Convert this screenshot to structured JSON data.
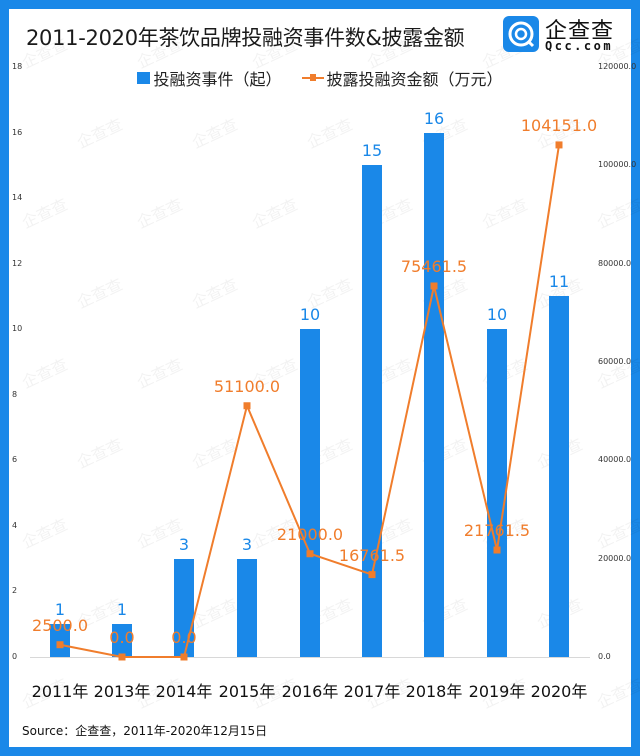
{
  "header": {
    "title": "2011-2020年茶饮品牌投融资事件数&披露金额",
    "logo_cn": "企查查",
    "logo_en": "Qcc.com"
  },
  "legend": {
    "bar_label": "投融资事件（起）",
    "line_label": "披露投融资金额（万元）"
  },
  "axes": {
    "left_ticks": [
      "18",
      "16",
      "14",
      "12",
      "10",
      "8",
      "6",
      "4",
      "2",
      "0"
    ],
    "right_ticks": [
      "120000.0",
      "100000.0",
      "80000.0",
      "60000.0",
      "40000.0",
      "20000.0",
      "0.0"
    ]
  },
  "x_labels": [
    "2011年",
    "2013年",
    "2014年",
    "2015年",
    "2016年",
    "2017年",
    "2018年",
    "2019年",
    "2020年"
  ],
  "bar_labels": [
    "1",
    "1",
    "3",
    "3",
    "10",
    "15",
    "16",
    "10",
    "11"
  ],
  "line_labels": [
    "2500.0",
    "0.0",
    "0.0",
    "51100.0",
    "21000.0",
    "16761.5",
    "75461.5",
    "21761.5",
    "104151.0"
  ],
  "footer": {
    "source": "Source：企查查，2011年-2020年12月15日"
  },
  "colors": {
    "bar": "#1a88e8",
    "line": "#f07d2c",
    "frame": "#1a88e8"
  },
  "chart_data": {
    "type": "bar",
    "title": "2011-2020年茶饮品牌投融资事件数&披露金额",
    "categories": [
      "2011年",
      "2013年",
      "2014年",
      "2015年",
      "2016年",
      "2017年",
      "2018年",
      "2019年",
      "2020年"
    ],
    "series": [
      {
        "name": "投融资事件（起）",
        "type": "bar",
        "axis": "left",
        "values": [
          1,
          1,
          3,
          3,
          10,
          15,
          16,
          10,
          11
        ]
      },
      {
        "name": "披露投融资金额（万元）",
        "type": "line",
        "axis": "right",
        "values": [
          2500.0,
          0.0,
          0.0,
          51100.0,
          21000.0,
          16761.5,
          75461.5,
          21761.5,
          104151.0
        ]
      }
    ],
    "xlabel": "",
    "ylabel": "",
    "ylim": [
      0,
      18
    ],
    "y2lim": [
      0,
      120000
    ],
    "left_ticks": [
      0,
      2,
      4,
      6,
      8,
      10,
      12,
      14,
      16,
      18
    ],
    "right_ticks": [
      0,
      20000,
      40000,
      60000,
      80000,
      100000,
      120000
    ],
    "grid": false,
    "legend_position": "top",
    "source": "Source：企查查，2011年-2020年12月15日"
  }
}
